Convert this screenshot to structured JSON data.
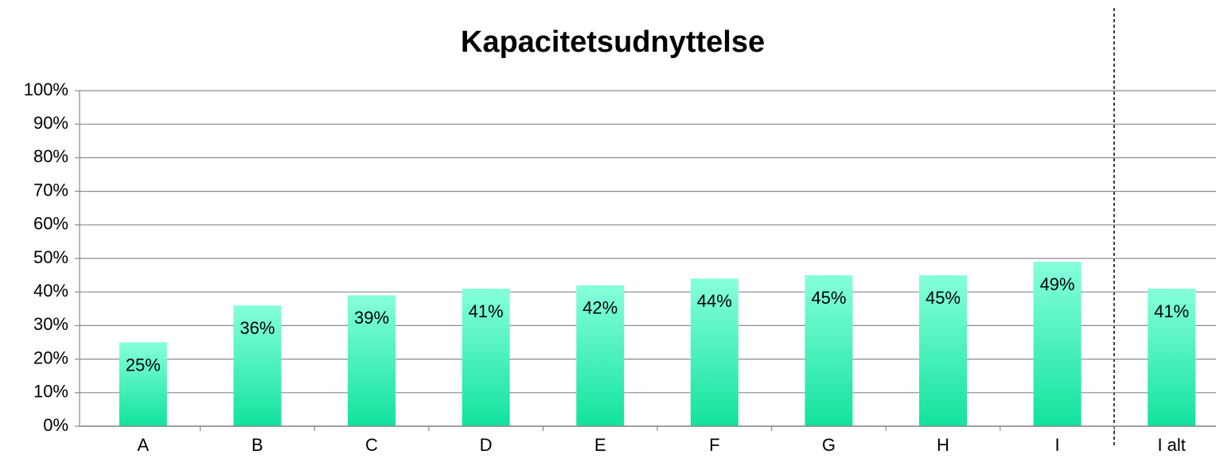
{
  "chart_data": {
    "type": "bar",
    "title": "Kapacitetsudnyttelse",
    "categories": [
      "A",
      "B",
      "C",
      "D",
      "E",
      "F",
      "G",
      "H",
      "I",
      "I alt"
    ],
    "values": [
      25,
      36,
      39,
      41,
      42,
      44,
      45,
      45,
      49,
      41
    ],
    "value_labels": [
      "25%",
      "36%",
      "39%",
      "41%",
      "42%",
      "44%",
      "45%",
      "45%",
      "49%",
      "41%"
    ],
    "color": "#2de8a8",
    "ylim": [
      0,
      100
    ],
    "yticks": [
      {
        "value": 0,
        "label": "0%"
      },
      {
        "value": 10,
        "label": "10%"
      },
      {
        "value": 20,
        "label": "20%"
      },
      {
        "value": 30,
        "label": "30%"
      },
      {
        "value": 40,
        "label": "40%"
      },
      {
        "value": 50,
        "label": "50%"
      },
      {
        "value": 60,
        "label": "60%"
      },
      {
        "value": 70,
        "label": "70%"
      },
      {
        "value": 80,
        "label": "80%"
      },
      {
        "value": 90,
        "label": "90%"
      },
      {
        "value": 100,
        "label": "100%"
      }
    ],
    "grid": true
  }
}
